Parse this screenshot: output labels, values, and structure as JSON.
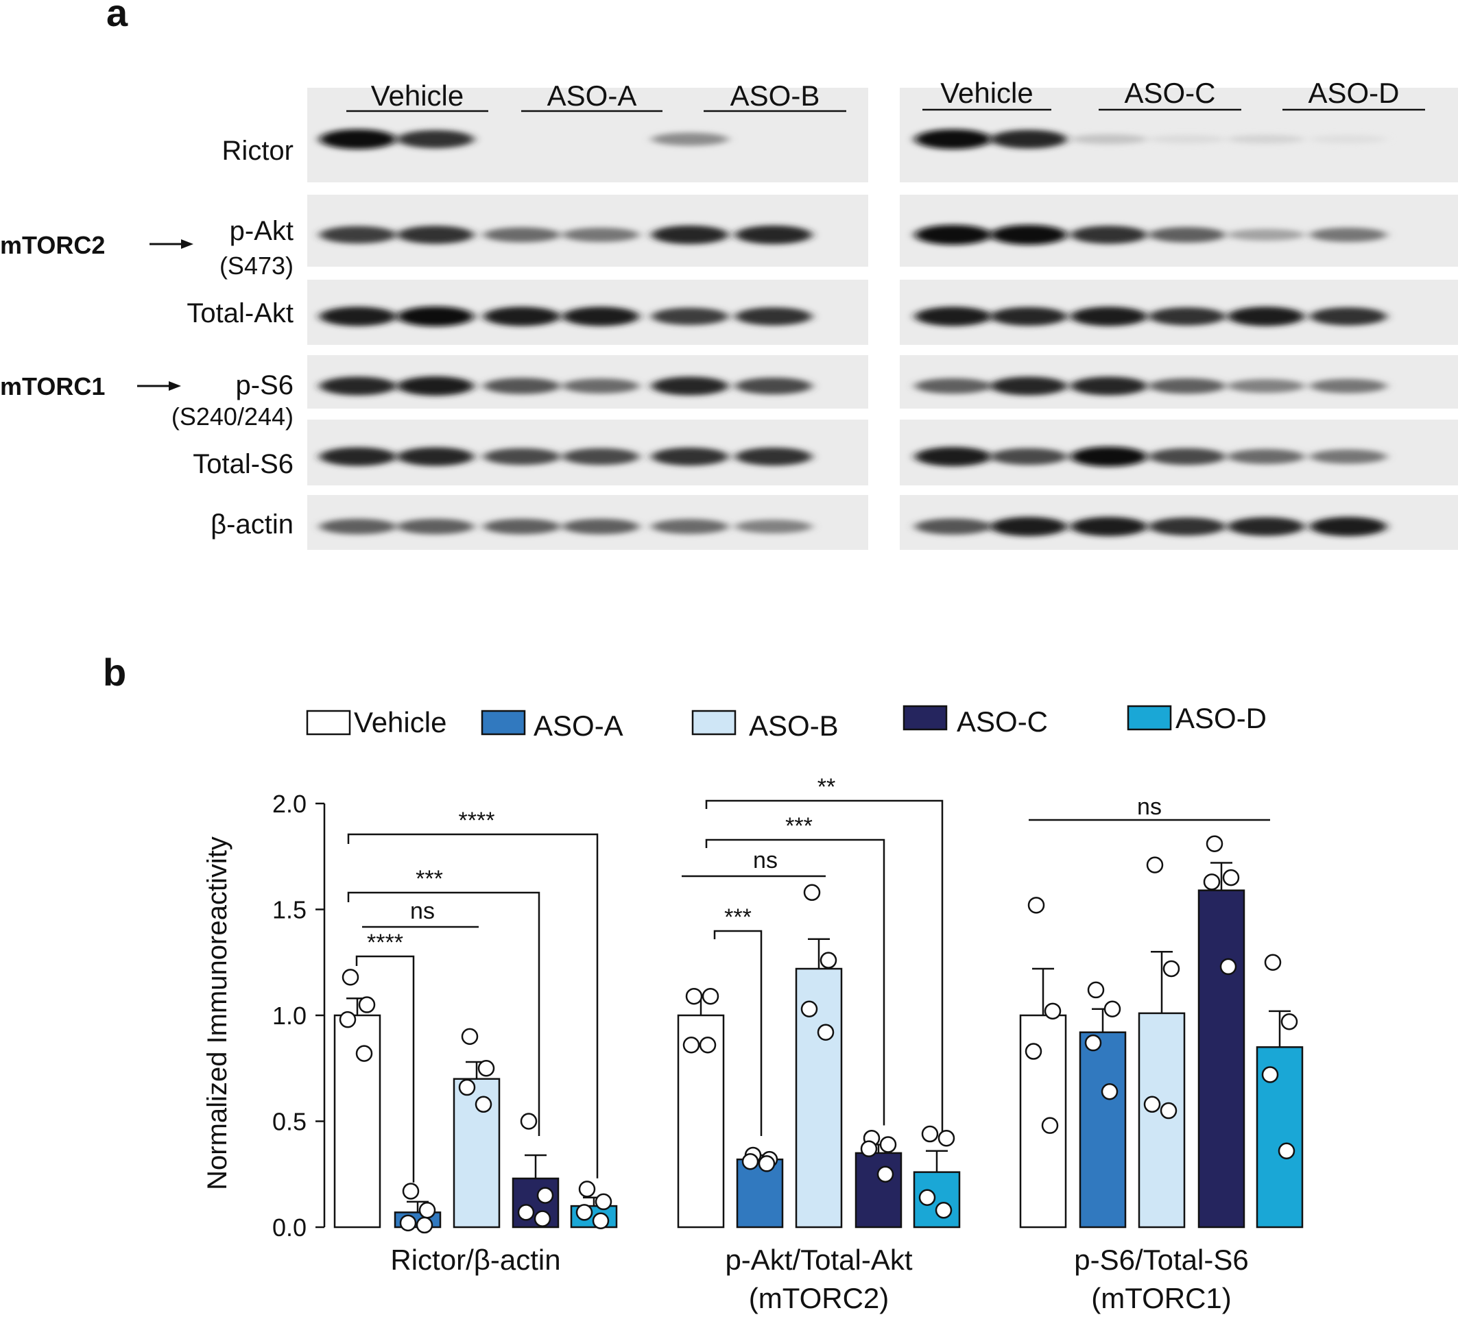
{
  "panel_a": {
    "label": "a",
    "left_groups": [
      "Vehicle",
      "ASO-A",
      "ASO-B"
    ],
    "right_groups": [
      "Vehicle",
      "ASO-C",
      "ASO-D"
    ],
    "rows": [
      {
        "name": "Rictor",
        "sub": ""
      },
      {
        "name": "p-Akt",
        "sub": "(S473)"
      },
      {
        "name": "Total-Akt",
        "sub": ""
      },
      {
        "name": "p-S6",
        "sub": "(S240/244)"
      },
      {
        "name": "Total-S6",
        "sub": ""
      },
      {
        "name": "β-actin",
        "sub": ""
      }
    ],
    "complex_labels": {
      "mtorc2": "mTORC2",
      "mtorc1": "mTORC1"
    },
    "band_intensity": {
      "left": [
        [
          0.95,
          0.8,
          0.0,
          0.0,
          0.4,
          0.0
        ],
        [
          0.75,
          0.8,
          0.55,
          0.5,
          0.85,
          0.85
        ],
        [
          0.9,
          0.95,
          0.9,
          0.9,
          0.75,
          0.8
        ],
        [
          0.85,
          0.9,
          0.65,
          0.55,
          0.85,
          0.7
        ],
        [
          0.85,
          0.85,
          0.7,
          0.7,
          0.8,
          0.8
        ],
        [
          0.6,
          0.6,
          0.6,
          0.6,
          0.55,
          0.45
        ]
      ],
      "right": [
        [
          0.95,
          0.85,
          0.15,
          0.05,
          0.08,
          0.03
        ],
        [
          0.95,
          0.95,
          0.8,
          0.6,
          0.3,
          0.5
        ],
        [
          0.9,
          0.85,
          0.9,
          0.8,
          0.9,
          0.8
        ],
        [
          0.6,
          0.85,
          0.85,
          0.6,
          0.45,
          0.5
        ],
        [
          0.9,
          0.7,
          0.95,
          0.7,
          0.55,
          0.5
        ],
        [
          0.65,
          0.9,
          0.9,
          0.8,
          0.85,
          0.9
        ]
      ]
    }
  },
  "panel_b": {
    "label": "b",
    "legend": [
      {
        "name": "Vehicle",
        "color": "#ffffff"
      },
      {
        "name": "ASO-A",
        "color": "#3179bf"
      },
      {
        "name": "ASO-B",
        "color": "#cfe6f6"
      },
      {
        "name": "ASO-C",
        "color": "#25255e"
      },
      {
        "name": "ASO-D",
        "color": "#1aa7d6"
      }
    ],
    "chart_data": {
      "type": "bar",
      "ylabel": "Normalized Immunoreactivity",
      "ylim": [
        0,
        2.0
      ],
      "yticks": [
        "0.0",
        "0.5",
        "1.0",
        "1.5",
        "2.0"
      ],
      "groups": [
        {
          "label": "Rictor/β-actin",
          "label2": "",
          "bars": [
            {
              "series": "Vehicle",
              "mean": 1.0,
              "sem": 0.08,
              "points": [
                1.18,
                1.05,
                0.98,
                0.82
              ]
            },
            {
              "series": "ASO-A",
              "mean": 0.07,
              "sem": 0.05,
              "points": [
                0.17,
                0.08,
                0.02,
                0.01
              ]
            },
            {
              "series": "ASO-B",
              "mean": 0.7,
              "sem": 0.08,
              "points": [
                0.9,
                0.75,
                0.66,
                0.58
              ]
            },
            {
              "series": "ASO-C",
              "mean": 0.23,
              "sem": 0.11,
              "points": [
                0.5,
                0.15,
                0.07,
                0.04
              ]
            },
            {
              "series": "ASO-D",
              "mean": 0.1,
              "sem": 0.04,
              "points": [
                0.18,
                0.12,
                0.07,
                0.03
              ]
            }
          ],
          "sig": [
            {
              "from": 0,
              "to": 1,
              "label": "****"
            },
            {
              "from": 0,
              "to": 2,
              "label": "ns"
            },
            {
              "from": 0,
              "to": 3,
              "label": "***"
            },
            {
              "from": 0,
              "to": 4,
              "label": "****"
            }
          ]
        },
        {
          "label": "p-Akt/Total-Akt",
          "label2": "(mTORC2)",
          "bars": [
            {
              "series": "Vehicle",
              "mean": 1.0,
              "sem": 0.09,
              "points": [
                1.09,
                1.09,
                0.86,
                0.86
              ]
            },
            {
              "series": "ASO-A",
              "mean": 0.32,
              "sem": 0.02,
              "points": [
                0.34,
                0.32,
                0.31,
                0.3
              ]
            },
            {
              "series": "ASO-B",
              "mean": 1.22,
              "sem": 0.14,
              "points": [
                1.58,
                1.26,
                1.03,
                0.92
              ]
            },
            {
              "series": "ASO-C",
              "mean": 0.35,
              "sem": 0.04,
              "points": [
                0.42,
                0.39,
                0.37,
                0.25
              ]
            },
            {
              "series": "ASO-D",
              "mean": 0.26,
              "sem": 0.1,
              "points": [
                0.44,
                0.42,
                0.14,
                0.08
              ]
            }
          ],
          "sig": [
            {
              "from": 0,
              "to": 1,
              "label": "***"
            },
            {
              "from": 0,
              "to": 2,
              "label": "ns"
            },
            {
              "from": 0,
              "to": 3,
              "label": "***"
            },
            {
              "from": 0,
              "to": 4,
              "label": "**"
            }
          ]
        },
        {
          "label": "p-S6/Total-S6",
          "label2": "(mTORC1)",
          "bars": [
            {
              "series": "Vehicle",
              "mean": 1.0,
              "sem": 0.22,
              "points": [
                1.52,
                1.02,
                0.83,
                0.48
              ]
            },
            {
              "series": "ASO-A",
              "mean": 0.92,
              "sem": 0.11,
              "points": [
                1.12,
                1.03,
                0.87,
                0.64
              ]
            },
            {
              "series": "ASO-B",
              "mean": 1.01,
              "sem": 0.29,
              "points": [
                1.71,
                1.22,
                0.58,
                0.55
              ]
            },
            {
              "series": "ASO-C",
              "mean": 1.59,
              "sem": 0.13,
              "points": [
                1.81,
                1.65,
                1.63,
                1.23
              ]
            },
            {
              "series": "ASO-D",
              "mean": 0.85,
              "sem": 0.17,
              "points": [
                1.25,
                0.97,
                0.72,
                0.36
              ]
            }
          ],
          "sig": [
            {
              "from": 0,
              "to": 4,
              "label": "ns"
            }
          ]
        }
      ]
    }
  }
}
